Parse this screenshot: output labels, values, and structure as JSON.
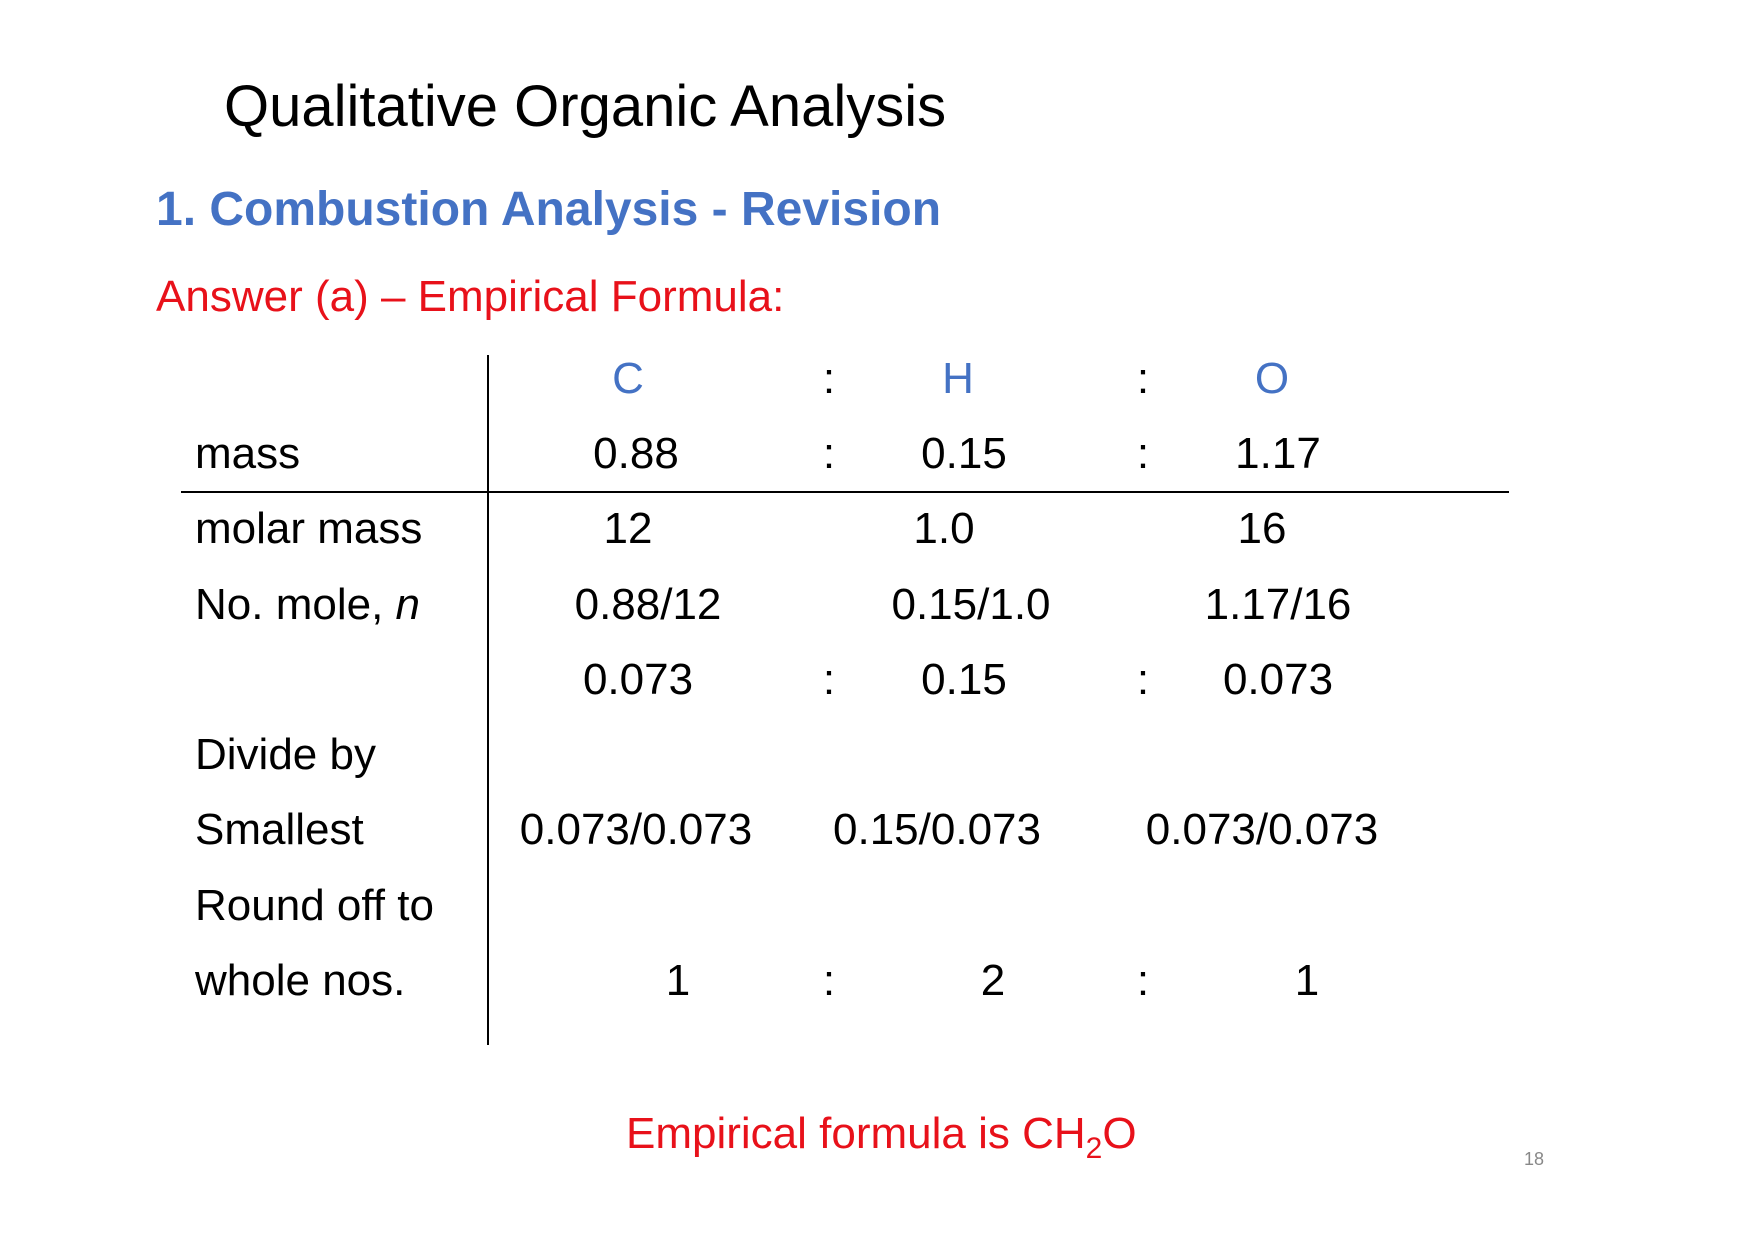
{
  "slide": {
    "title": "Qualitative Organic Analysis",
    "subtitle": "1. Combustion Analysis -  Revision",
    "answer_heading": "Answer (a) – Empirical Formula:",
    "page_number": "18",
    "accent_colors": {
      "blue": "#4472C4",
      "red": "#E8111A"
    }
  },
  "table": {
    "separator": ":",
    "elements": [
      "C",
      "H",
      "O"
    ],
    "rows": [
      {
        "label": "mass",
        "values": [
          "0.88",
          "0.15",
          "1.17"
        ],
        "colons": true
      },
      {
        "label": "molar mass",
        "values": [
          "12",
          "1.0",
          "16"
        ],
        "colons": false
      },
      {
        "label_main": "No. mole, ",
        "label_italic": "n",
        "values": [
          "0.88/12",
          "0.15/1.0",
          "1.17/16"
        ],
        "colons": false
      },
      {
        "label": "",
        "values": [
          "0.073",
          "0.15",
          "0.073"
        ],
        "colons": true
      },
      {
        "label": "Divide by",
        "values": [],
        "colons": false
      },
      {
        "label": "Smallest",
        "values": [
          "0.073/0.073",
          "0.15/0.073",
          "0.073/0.073"
        ],
        "colons": false
      },
      {
        "label": "Round off to",
        "values": [],
        "colons": false
      },
      {
        "label": "whole nos.",
        "values": [
          "1",
          "2",
          "1"
        ],
        "colons": true
      }
    ]
  },
  "conclusion": {
    "prefix": "Empirical formula is CH",
    "subscript": "2",
    "suffix": "O"
  }
}
